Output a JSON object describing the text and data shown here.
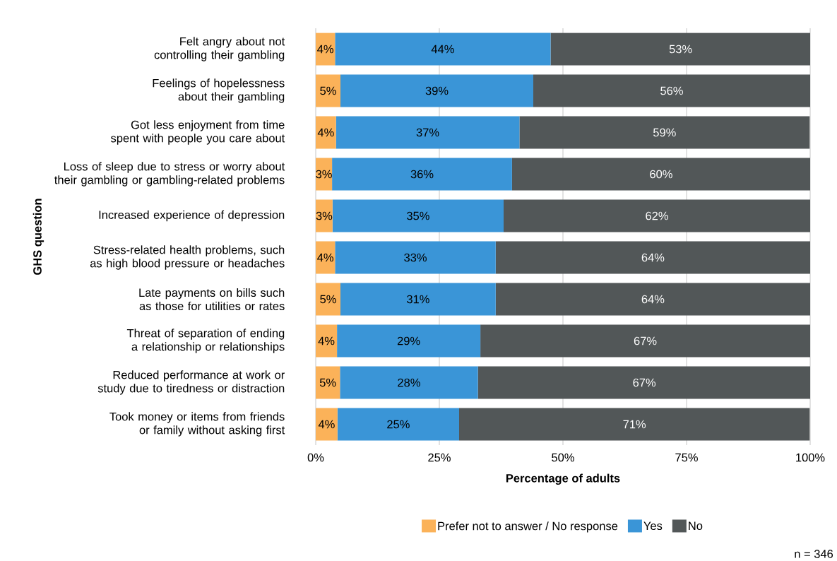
{
  "chart_data": {
    "type": "bar",
    "orientation": "horizontal",
    "stacked": true,
    "xlabel": "Percentage of adults",
    "ylabel": "GHS question",
    "categories": [
      "Felt angry about not controlling their gambling",
      "Feelings of hopelessness about their gambling",
      "Got less enjoyment from time spent with people you care about",
      "Loss of sleep due to stress or worry about their gambling or gambling-related problems",
      "Increased experience of depression",
      "Stress-related health problems, such as high blood pressure or headaches",
      "Late payments on bills such as those for utilities or rates",
      "Threat of separation of ending a relationship or relationships",
      "Reduced performance at work or study due to tiredness or distraction",
      "Took money or items from friends or family without asking first"
    ],
    "series": [
      {
        "name": "Prefer not to answer / No response",
        "color": "#fbb259",
        "values": [
          3.9,
          5.0,
          4.1,
          3.3,
          3.4,
          3.9,
          5.0,
          4.3,
          4.9,
          4.4
        ],
        "value_labels": [
          "4%",
          "5%",
          "4%",
          "3%",
          "3%",
          "4%",
          "5%",
          "4%",
          "5%",
          "4%"
        ]
      },
      {
        "name": "Yes",
        "color": "#3a95d7",
        "values": [
          43.6,
          39.0,
          37.1,
          36.4,
          34.6,
          32.5,
          31.4,
          29.0,
          27.9,
          24.6
        ],
        "value_labels": [
          "44%",
          "39%",
          "37%",
          "36%",
          "35%",
          "33%",
          "31%",
          "29%",
          "28%",
          "25%"
        ]
      },
      {
        "name": "No",
        "color": "#525758",
        "values": [
          52.6,
          56.0,
          58.7,
          60.3,
          62.0,
          63.6,
          63.6,
          66.7,
          67.3,
          70.9
        ],
        "value_labels": [
          "53%",
          "56%",
          "59%",
          "60%",
          "62%",
          "64%",
          "64%",
          "67%",
          "67%",
          "71%"
        ]
      }
    ],
    "xlim": [
      0,
      100
    ],
    "xticks": [
      {
        "value": 0,
        "label": "0%"
      },
      {
        "value": 25,
        "label": "25%"
      },
      {
        "value": 50,
        "label": "50%"
      },
      {
        "value": 75,
        "label": "75%"
      },
      {
        "value": 100,
        "label": "100%"
      }
    ],
    "grid": "x",
    "legend": "bottom",
    "annotations": [
      "n = 346"
    ]
  }
}
